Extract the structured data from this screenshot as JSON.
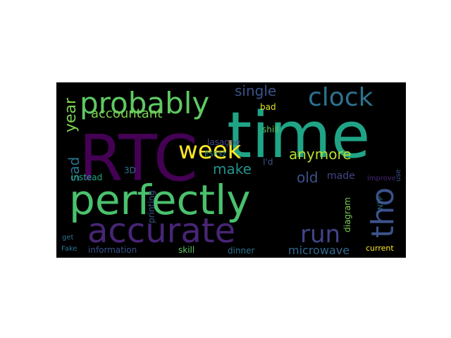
{
  "wordcloud": {
    "background": "#000000",
    "words": [
      {
        "text": "time",
        "color": "#20a486"
      },
      {
        "text": "RTC",
        "color": "#440154"
      },
      {
        "text": "perfectly",
        "color": "#4ac16d"
      },
      {
        "text": "accurate",
        "color": "#482576"
      },
      {
        "text": "tho",
        "color": "#3b528b"
      },
      {
        "text": "probably",
        "color": "#5ec962"
      },
      {
        "text": "clock",
        "color": "#2c728e"
      },
      {
        "text": "week",
        "color": "#fde725"
      },
      {
        "text": "run",
        "color": "#414487"
      },
      {
        "text": "single",
        "color": "#3b528b"
      },
      {
        "text": "accountant",
        "color": "#7ad151"
      },
      {
        "text": "year",
        "color": "#7ad151"
      },
      {
        "text": "sad",
        "color": "#2c728e"
      },
      {
        "text": "anymore",
        "color": "#b5de2b"
      },
      {
        "text": "make",
        "color": "#21918c"
      },
      {
        "text": "old",
        "color": "#3b528b"
      },
      {
        "text": "made",
        "color": "#414487"
      },
      {
        "text": "microwave",
        "color": "#31688e"
      },
      {
        "text": "bad",
        "color": "#dce319"
      },
      {
        "text": "shill",
        "color": "#5ec962"
      },
      {
        "text": "lasagne",
        "color": "#414487"
      },
      {
        "text": "ESP32",
        "color": "#21918c"
      },
      {
        "text": "I'd",
        "color": "#3b528b"
      },
      {
        "text": "printing",
        "color": "#3b528b"
      },
      {
        "text": "3D",
        "color": "#2c728e"
      },
      {
        "text": "instead",
        "color": "#22a884"
      },
      {
        "text": "improve",
        "color": "#482878"
      },
      {
        "text": "use",
        "color": "#3b528b"
      },
      {
        "text": "NTP",
        "color": "#2c728e"
      },
      {
        "text": "diagram",
        "color": "#7ad151"
      },
      {
        "text": "get",
        "color": "#2c728e"
      },
      {
        "text": "Fake",
        "color": "#2c728e"
      },
      {
        "text": "information",
        "color": "#3b528b"
      },
      {
        "text": "skill",
        "color": "#5ec962"
      },
      {
        "text": "dinner",
        "color": "#2c728e"
      },
      {
        "text": "current",
        "color": "#fde725"
      }
    ]
  }
}
